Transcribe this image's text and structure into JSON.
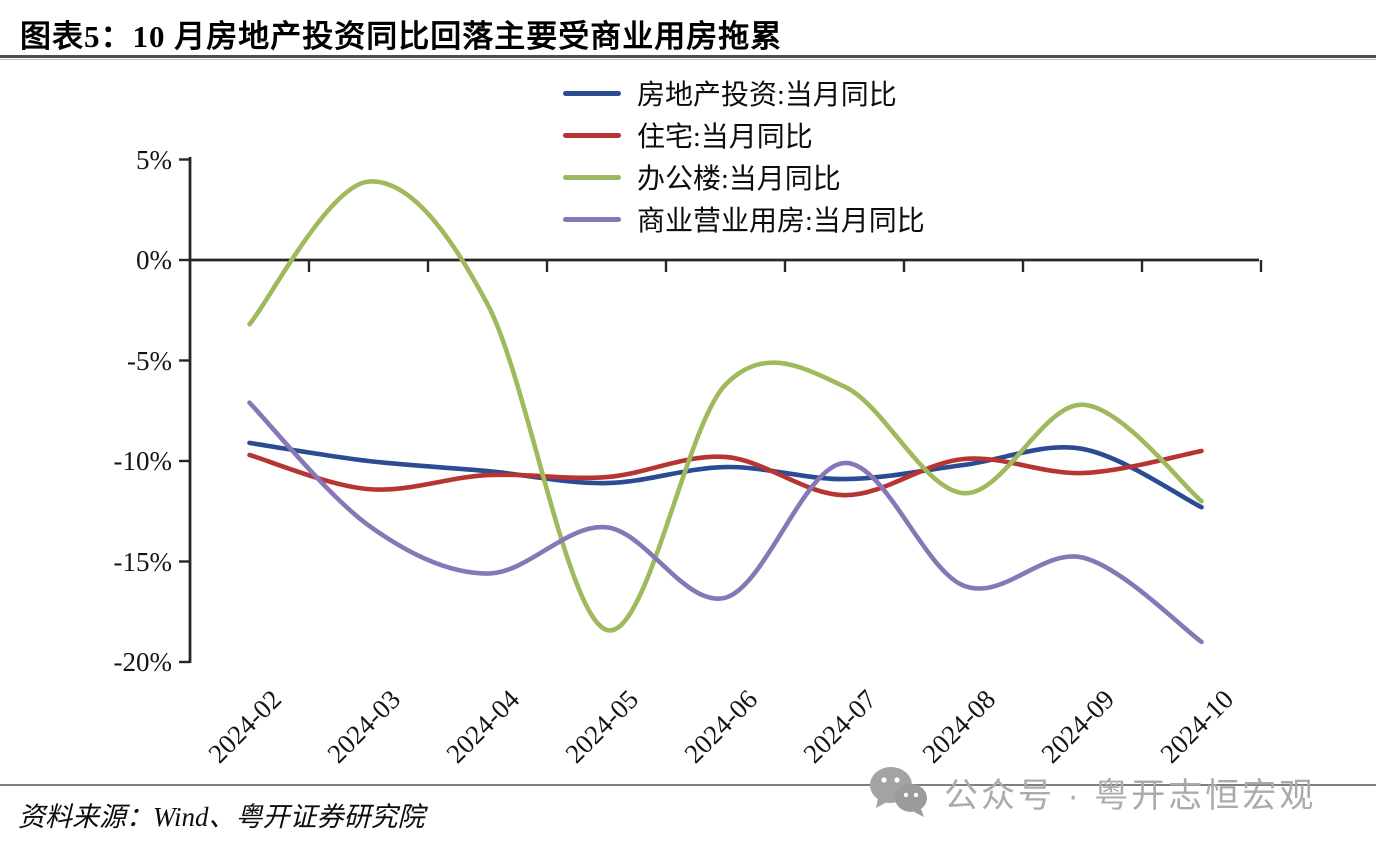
{
  "title": "图表5：10 月房地产投资同比回落主要受商业用房拖累",
  "source": "资料来源：Wind、粤开证券研究院",
  "watermark": {
    "icon": "wechat-icon",
    "text": "公众号 · 粤开志恒宏观",
    "color": "#ababab"
  },
  "chart_data": {
    "type": "line",
    "smooth": true,
    "grid": false,
    "legend_position": "top-center",
    "unit": "%",
    "x": [
      "2024-02",
      "2024-03",
      "2024-04",
      "2024-05",
      "2024-06",
      "2024-07",
      "2024-08",
      "2024-09",
      "2024-10"
    ],
    "series": [
      {
        "name": "房地产投资:当月同比",
        "color": "#2B4C92",
        "values": [
          -9.1,
          -10.0,
          -10.5,
          -11.1,
          -10.3,
          -10.9,
          -10.2,
          -9.4,
          -12.3
        ]
      },
      {
        "name": "住宅:当月同比",
        "color": "#B63532",
        "values": [
          -9.7,
          -11.4,
          -10.7,
          -10.8,
          -9.8,
          -11.7,
          -9.9,
          -10.6,
          -9.5
        ]
      },
      {
        "name": "办公楼:当月同比",
        "color": "#9FBA5C",
        "values": [
          -3.2,
          3.9,
          -2.2,
          -18.4,
          -6.2,
          -6.3,
          -11.6,
          -7.2,
          -12.0
        ]
      },
      {
        "name": "商业营业用房:当月同比",
        "color": "#8877B6",
        "values": [
          -7.1,
          -13.2,
          -15.6,
          -13.3,
          -16.8,
          -10.1,
          -16.2,
          -14.8,
          -19.0
        ]
      }
    ],
    "y_tick_labels": [
      "5%",
      "0%",
      "-5%",
      "-10%",
      "-15%",
      "-20%"
    ],
    "y_tick_values": [
      5,
      0,
      -5,
      -10,
      -15,
      -20
    ],
    "ylim": [
      -20,
      5
    ],
    "axis_color": "#262626"
  }
}
